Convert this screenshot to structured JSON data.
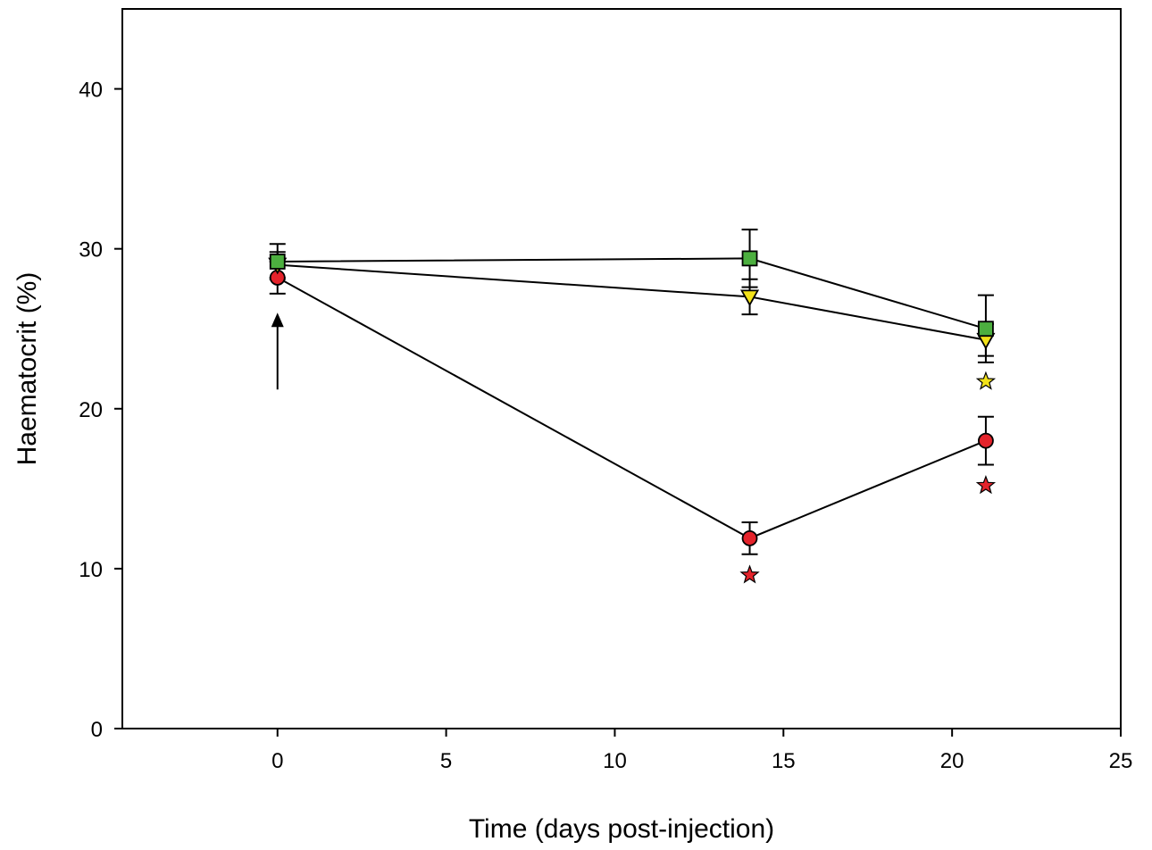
{
  "chart_data": {
    "type": "scatter",
    "xlabel": "Time (days post-injection)",
    "ylabel": "Haematocrit (%)",
    "xlim": [
      -4.6,
      25
    ],
    "ylim": [
      0,
      45
    ],
    "xticks": [
      0,
      5,
      10,
      15,
      20,
      25
    ],
    "yticks": [
      0,
      10,
      20,
      30,
      40
    ],
    "grid": false,
    "legend": "none",
    "series": [
      {
        "marker": "square",
        "color": "#4caf3f",
        "points": [
          {
            "x": 0,
            "y": 29.2,
            "err": 1.1
          },
          {
            "x": 14,
            "y": 29.4,
            "err": 1.8
          },
          {
            "x": 21,
            "y": 25.0,
            "err": 2.1
          }
        ]
      },
      {
        "marker": "triangle-down",
        "color": "#f2e21a",
        "points": [
          {
            "x": 0,
            "y": 29.0,
            "err": 0.8
          },
          {
            "x": 14,
            "y": 27.0,
            "err": 1.1
          },
          {
            "x": 21,
            "y": 24.3,
            "err": 1.0
          }
        ]
      },
      {
        "marker": "circle",
        "color": "#e4232b",
        "points": [
          {
            "x": 0,
            "y": 28.2,
            "err": 1.0
          },
          {
            "x": 14,
            "y": 11.9,
            "err": 1.0
          },
          {
            "x": 21,
            "y": 18.0,
            "err": 1.5
          }
        ]
      }
    ],
    "significance_stars": [
      {
        "x": 14,
        "y": 9.6,
        "color": "#e4232b"
      },
      {
        "x": 21,
        "y": 15.2,
        "color": "#e4232b"
      },
      {
        "x": 21,
        "y": 21.7,
        "color": "#f2e21a"
      }
    ],
    "annotations": [
      {
        "type": "arrow",
        "x": 0,
        "y_from": 21.2,
        "y_to": 26.0
      }
    ]
  }
}
